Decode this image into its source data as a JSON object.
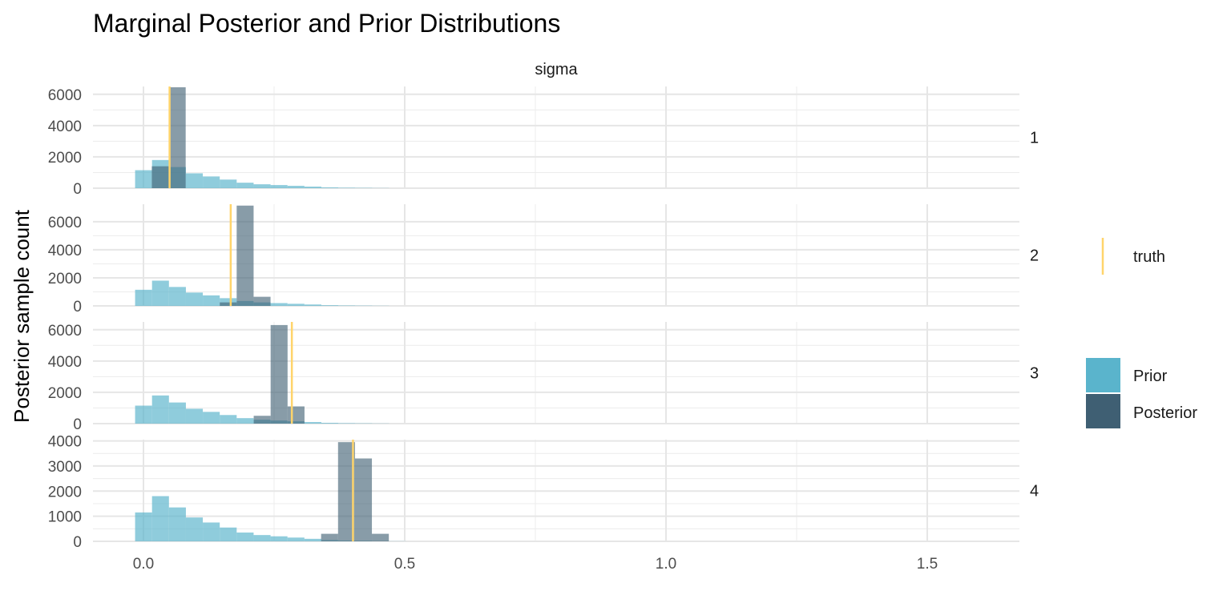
{
  "chart_data": {
    "type": "bar",
    "title": "Marginal Posterior and Prior Distributions",
    "strip_label": "sigma",
    "xlabel": "",
    "ylabel": "Posterior sample count",
    "xlim": [
      -0.02,
      1.67
    ],
    "x_ticks": [
      0.0,
      0.5,
      1.0,
      1.5
    ],
    "x_tick_labels": [
      "0.0",
      "0.5",
      "1.0",
      "1.5"
    ],
    "grid": true,
    "bin_width": 0.0324,
    "colors": {
      "prior": "#5ab4cc",
      "posterior": "#3f5f73",
      "truth": "#ffd46b"
    },
    "legend": {
      "placement": "right",
      "truth_label": "truth",
      "fill_labels": [
        "Prior",
        "Posterior"
      ]
    },
    "facets": [
      {
        "label": "1",
        "ylim": [
          0,
          6500
        ],
        "y_ticks": [
          0,
          2000,
          4000,
          6000
        ],
        "y_tick_labels": [
          "0",
          "2000",
          "4000",
          "6000"
        ],
        "truth": 0.05,
        "prior": {
          "start": -0.016,
          "counts": [
            1150,
            1800,
            1350,
            950,
            750,
            550,
            350,
            250,
            200,
            150,
            100,
            50,
            30,
            20,
            10
          ]
        },
        "posterior": {
          "start": 0.016,
          "counts": [
            1400,
            6450
          ]
        }
      },
      {
        "label": "2",
        "ylim": [
          0,
          7250
        ],
        "y_ticks": [
          0,
          2000,
          4000,
          6000
        ],
        "y_tick_labels": [
          "0",
          "2000",
          "4000",
          "6000"
        ],
        "truth": 0.167,
        "prior": {
          "start": -0.016,
          "counts": [
            1150,
            1800,
            1350,
            950,
            750,
            550,
            350,
            250,
            200,
            150,
            100,
            50,
            30,
            20,
            10
          ]
        },
        "posterior": {
          "start": 0.146,
          "counts": [
            250,
            7150,
            650
          ]
        }
      },
      {
        "label": "3",
        "ylim": [
          0,
          6500
        ],
        "y_ticks": [
          0,
          2000,
          4000,
          6000
        ],
        "y_tick_labels": [
          "0",
          "2000",
          "4000",
          "6000"
        ],
        "truth": 0.284,
        "prior": {
          "start": -0.016,
          "counts": [
            1150,
            1800,
            1350,
            950,
            750,
            550,
            350,
            250,
            200,
            150,
            100,
            50,
            30,
            20,
            10
          ]
        },
        "posterior": {
          "start": 0.211,
          "counts": [
            500,
            6300,
            1100
          ]
        }
      },
      {
        "label": "4",
        "ylim": [
          0,
          4050
        ],
        "y_ticks": [
          0,
          1000,
          2000,
          3000,
          4000
        ],
        "y_tick_labels": [
          "0",
          "1000",
          "2000",
          "3000",
          "4000"
        ],
        "truth": 0.401,
        "prior": {
          "start": -0.016,
          "counts": [
            1150,
            1800,
            1350,
            950,
            750,
            550,
            350,
            250,
            200,
            150,
            100,
            50,
            30,
            20,
            10,
            5
          ]
        },
        "posterior": {
          "start": 0.34,
          "counts": [
            300,
            3950,
            3300,
            300
          ]
        }
      }
    ]
  }
}
